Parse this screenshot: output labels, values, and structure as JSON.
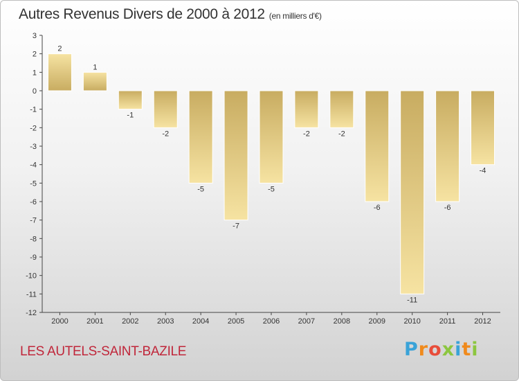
{
  "header": {
    "title": "Autres Revenus Divers de 2000 à 2012",
    "subtitle": "(en milliers d'€)"
  },
  "footer": {
    "commune": "LES AUTELS-SAINT-BAZILE",
    "logo_letters": [
      "P",
      "r",
      "o",
      "x",
      "i",
      "t",
      "i"
    ],
    "logo_colors": [
      "#3aa3d8",
      "#f08a1c",
      "#e84d3a",
      "#8cc63f",
      "#3aa3d8",
      "#f08a1c",
      "#8cc63f"
    ]
  },
  "colors": {
    "bar_top": "#c8ac61",
    "bar_bottom": "#f6e3a2",
    "axis": "#444444",
    "text": "#333333"
  },
  "chart_data": {
    "type": "bar",
    "categories": [
      "2000",
      "2001",
      "2002",
      "2003",
      "2004",
      "2005",
      "2006",
      "2007",
      "2008",
      "2009",
      "2010",
      "2011",
      "2012"
    ],
    "values": [
      2,
      1,
      -1,
      -2,
      -5,
      -7,
      -5,
      -2,
      -2,
      -6,
      -11,
      -6,
      -4
    ],
    "data_labels": [
      "2",
      "1",
      "-1",
      "-2",
      "-5",
      "-7",
      "-5",
      "-2",
      "-2",
      "-6",
      "-11",
      "-6",
      "-4"
    ],
    "ylim": [
      -12,
      3
    ],
    "yticks": [
      3,
      2,
      1,
      0,
      -1,
      -2,
      -3,
      -4,
      -5,
      -6,
      -7,
      -8,
      -9,
      -10,
      -11,
      -12
    ],
    "ytick_labels": [
      "3",
      "2",
      "1",
      "0",
      "-1",
      "-2",
      "-3",
      "-4",
      "-5",
      "-6",
      "-7",
      "-8",
      "-9",
      "-10",
      "-11",
      "-12"
    ],
    "grid": false,
    "legend": "none"
  }
}
